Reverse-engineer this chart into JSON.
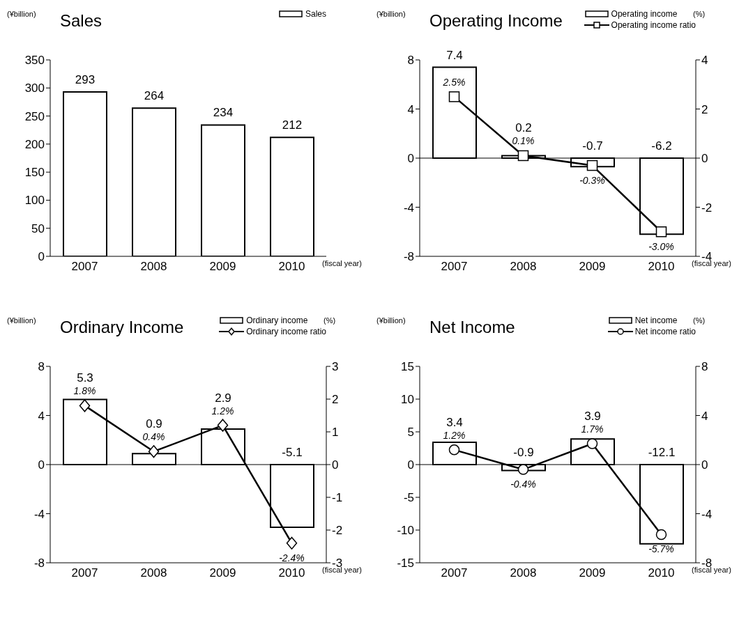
{
  "chart_data": [
    {
      "type": "bar",
      "title": "Sales",
      "ylabel": "(¥billion)",
      "xlabel": "(fiscal year)",
      "categories": [
        "2007",
        "2008",
        "2009",
        "2010"
      ],
      "legend": "top right",
      "ylim": [
        0,
        350
      ],
      "yticks": [
        0,
        50,
        100,
        150,
        200,
        250,
        300,
        350
      ],
      "series": [
        {
          "name": "Sales",
          "color": "#ffffff",
          "values": [
            293,
            264,
            234,
            212
          ],
          "value_labels": [
            "293",
            "264",
            "234",
            "212"
          ]
        }
      ]
    },
    {
      "type": "bar",
      "title": "Operating Income",
      "ylabel": "(¥billion)",
      "y2label": "(%)",
      "xlabel": "(fiscal year)",
      "categories": [
        "2007",
        "2008",
        "2009",
        "2010"
      ],
      "legend": "top right",
      "ylim": [
        -8,
        8
      ],
      "yticks": [
        -8,
        -4,
        0,
        4,
        8
      ],
      "y2lim": [
        -4,
        4
      ],
      "y2ticks": [
        -4,
        -2,
        0,
        2,
        4
      ],
      "ref_lines": [
        {
          "axis": "y",
          "value": 0
        }
      ],
      "series": [
        {
          "name": "Operating income",
          "color": "#ffffff",
          "values": [
            7.4,
            0.2,
            -0.7,
            -6.2
          ],
          "value_labels": [
            "7.4",
            "0.2",
            "-0.7",
            "-6.2"
          ]
        },
        {
          "name": "Operating income ratio",
          "type": "line",
          "axis": "y2",
          "marker": "square",
          "color": "#000000",
          "values": [
            2.5,
            0.1,
            -0.3,
            -3.0
          ],
          "value_labels": [
            "2.5%",
            "0.1%",
            "-0.3%",
            "-3.0%"
          ]
        }
      ]
    },
    {
      "type": "bar",
      "title": "Ordinary Income",
      "ylabel": "(¥billion)",
      "y2label": "(%)",
      "xlabel": "(fiscal year)",
      "categories": [
        "2007",
        "2008",
        "2009",
        "2010"
      ],
      "legend": "top right",
      "ylim": [
        -8,
        8
      ],
      "yticks": [
        -8,
        -4,
        0,
        4,
        8
      ],
      "y2lim": [
        -3,
        3
      ],
      "y2ticks": [
        -3,
        -2,
        -1,
        0,
        1,
        2,
        3
      ],
      "ref_lines": [
        {
          "axis": "y",
          "value": 0
        }
      ],
      "series": [
        {
          "name": "Ordinary income",
          "color": "#ffffff",
          "values": [
            5.3,
            0.9,
            2.9,
            -5.1
          ],
          "value_labels": [
            "5.3",
            "0.9",
            "2.9",
            "-5.1"
          ]
        },
        {
          "name": "Ordinary income ratio",
          "type": "line",
          "axis": "y2",
          "marker": "diamond",
          "color": "#000000",
          "values": [
            1.8,
            0.4,
            1.2,
            -2.4
          ],
          "value_labels": [
            "1.8%",
            "0.4%",
            "1.2%",
            "-2.4%"
          ]
        }
      ]
    },
    {
      "type": "bar",
      "title": "Net Income",
      "ylabel": "(¥billion)",
      "y2label": "(%)",
      "xlabel": "(fiscal year)",
      "categories": [
        "2007",
        "2008",
        "2009",
        "2010"
      ],
      "legend": "top right",
      "ylim": [
        -15,
        15
      ],
      "yticks": [
        -15,
        -10,
        -5,
        0,
        5,
        10,
        15
      ],
      "y2lim": [
        -8,
        8
      ],
      "y2ticks": [
        -8,
        -4,
        0,
        4,
        8
      ],
      "ref_lines": [
        {
          "axis": "y",
          "value": 0
        }
      ],
      "series": [
        {
          "name": "Net income",
          "color": "#ffffff",
          "values": [
            3.4,
            -0.9,
            3.9,
            -12.1
          ],
          "value_labels": [
            "3.4",
            "-0.9",
            "3.9",
            "-12.1"
          ]
        },
        {
          "name": "Net income ratio",
          "type": "line",
          "axis": "y2",
          "marker": "circle",
          "color": "#000000",
          "values": [
            1.2,
            -0.4,
            1.7,
            -5.7
          ],
          "value_labels": [
            "1.2%",
            "-0.4%",
            "1.7%",
            "-5.7%"
          ]
        }
      ]
    }
  ]
}
